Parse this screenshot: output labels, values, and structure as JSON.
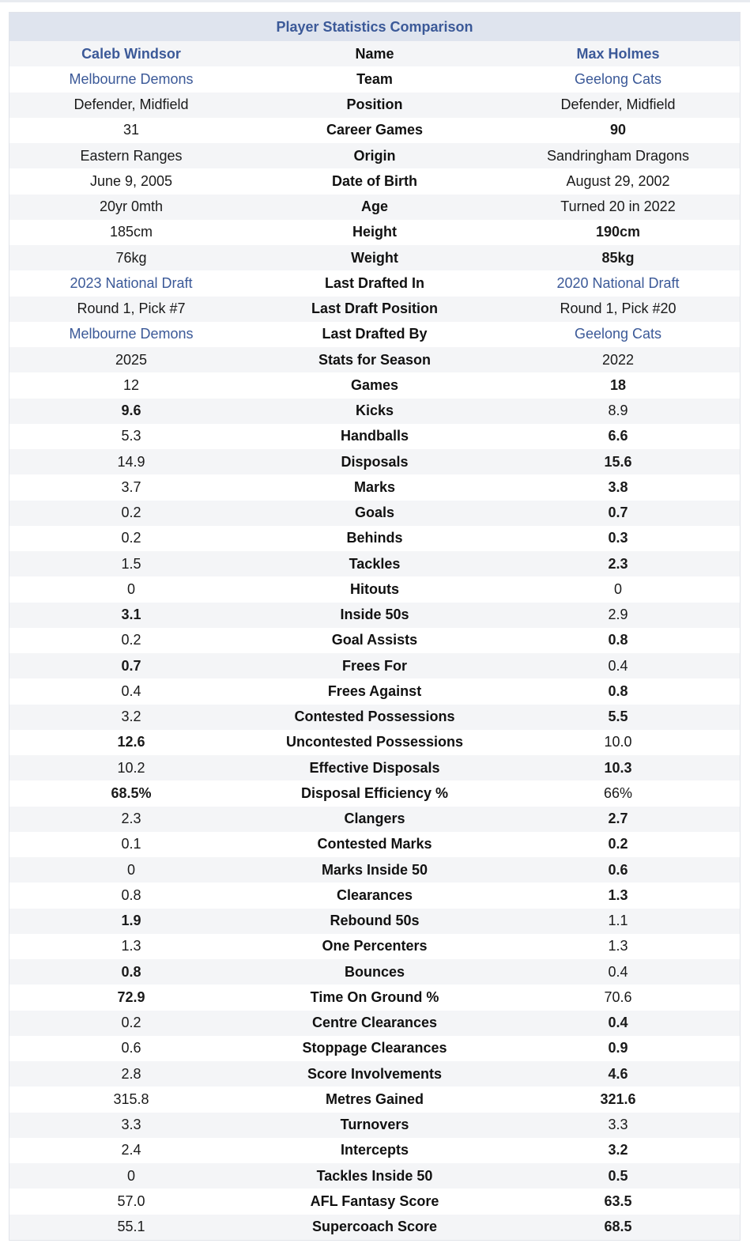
{
  "table": {
    "title": "Player Statistics Comparison",
    "rows": [
      {
        "left": "Caleb Windsor",
        "label": "Name",
        "right": "Max Holmes",
        "lstyle": "name",
        "rstyle": "name"
      },
      {
        "left": "Melbourne Demons",
        "label": "Team",
        "right": "Geelong Cats",
        "lstyle": "link",
        "rstyle": "link"
      },
      {
        "left": "Defender, Midfield",
        "label": "Position",
        "right": "Defender, Midfield",
        "lstyle": "",
        "rstyle": ""
      },
      {
        "left": "31",
        "label": "Career Games",
        "right": "90",
        "lstyle": "",
        "rstyle": "b"
      },
      {
        "left": "Eastern Ranges",
        "label": "Origin",
        "right": "Sandringham Dragons",
        "lstyle": "",
        "rstyle": ""
      },
      {
        "left": "June 9, 2005",
        "label": "Date of Birth",
        "right": "August 29, 2002",
        "lstyle": "",
        "rstyle": ""
      },
      {
        "left": "20yr 0mth",
        "label": "Age",
        "right": "Turned 20 in 2022",
        "lstyle": "",
        "rstyle": ""
      },
      {
        "left": "185cm",
        "label": "Height",
        "right": "190cm",
        "lstyle": "",
        "rstyle": "b"
      },
      {
        "left": "76kg",
        "label": "Weight",
        "right": "85kg",
        "lstyle": "",
        "rstyle": "b"
      },
      {
        "left": "2023 National Draft",
        "label": "Last Drafted In",
        "right": "2020 National Draft",
        "lstyle": "link",
        "rstyle": "link"
      },
      {
        "left": "Round 1, Pick #7",
        "label": "Last Draft Position",
        "right": "Round 1, Pick #20",
        "lstyle": "",
        "rstyle": ""
      },
      {
        "left": "Melbourne Demons",
        "label": "Last Drafted By",
        "right": "Geelong Cats",
        "lstyle": "link",
        "rstyle": "link"
      },
      {
        "left": "2025",
        "label": "Stats for Season",
        "right": "2022",
        "lstyle": "",
        "rstyle": ""
      },
      {
        "left": "12",
        "label": "Games",
        "right": "18",
        "lstyle": "",
        "rstyle": "b"
      },
      {
        "left": "9.6",
        "label": "Kicks",
        "right": "8.9",
        "lstyle": "b",
        "rstyle": ""
      },
      {
        "left": "5.3",
        "label": "Handballs",
        "right": "6.6",
        "lstyle": "",
        "rstyle": "b"
      },
      {
        "left": "14.9",
        "label": "Disposals",
        "right": "15.6",
        "lstyle": "",
        "rstyle": "b"
      },
      {
        "left": "3.7",
        "label": "Marks",
        "right": "3.8",
        "lstyle": "",
        "rstyle": "b"
      },
      {
        "left": "0.2",
        "label": "Goals",
        "right": "0.7",
        "lstyle": "",
        "rstyle": "b"
      },
      {
        "left": "0.2",
        "label": "Behinds",
        "right": "0.3",
        "lstyle": "",
        "rstyle": "b"
      },
      {
        "left": "1.5",
        "label": "Tackles",
        "right": "2.3",
        "lstyle": "",
        "rstyle": "b"
      },
      {
        "left": "0",
        "label": "Hitouts",
        "right": "0",
        "lstyle": "",
        "rstyle": ""
      },
      {
        "left": "3.1",
        "label": "Inside 50s",
        "right": "2.9",
        "lstyle": "b",
        "rstyle": ""
      },
      {
        "left": "0.2",
        "label": "Goal Assists",
        "right": "0.8",
        "lstyle": "",
        "rstyle": "b"
      },
      {
        "left": "0.7",
        "label": "Frees For",
        "right": "0.4",
        "lstyle": "b",
        "rstyle": ""
      },
      {
        "left": "0.4",
        "label": "Frees Against",
        "right": "0.8",
        "lstyle": "",
        "rstyle": "b"
      },
      {
        "left": "3.2",
        "label": "Contested Possessions",
        "right": "5.5",
        "lstyle": "",
        "rstyle": "b"
      },
      {
        "left": "12.6",
        "label": "Uncontested Possessions",
        "right": "10.0",
        "lstyle": "b",
        "rstyle": ""
      },
      {
        "left": "10.2",
        "label": "Effective Disposals",
        "right": "10.3",
        "lstyle": "",
        "rstyle": "b"
      },
      {
        "left": "68.5%",
        "label": "Disposal Efficiency %",
        "right": "66%",
        "lstyle": "b",
        "rstyle": ""
      },
      {
        "left": "2.3",
        "label": "Clangers",
        "right": "2.7",
        "lstyle": "",
        "rstyle": "b"
      },
      {
        "left": "0.1",
        "label": "Contested Marks",
        "right": "0.2",
        "lstyle": "",
        "rstyle": "b"
      },
      {
        "left": "0",
        "label": "Marks Inside 50",
        "right": "0.6",
        "lstyle": "",
        "rstyle": "b"
      },
      {
        "left": "0.8",
        "label": "Clearances",
        "right": "1.3",
        "lstyle": "",
        "rstyle": "b"
      },
      {
        "left": "1.9",
        "label": "Rebound 50s",
        "right": "1.1",
        "lstyle": "b",
        "rstyle": ""
      },
      {
        "left": "1.3",
        "label": "One Percenters",
        "right": "1.3",
        "lstyle": "",
        "rstyle": ""
      },
      {
        "left": "0.8",
        "label": "Bounces",
        "right": "0.4",
        "lstyle": "b",
        "rstyle": ""
      },
      {
        "left": "72.9",
        "label": "Time On Ground %",
        "right": "70.6",
        "lstyle": "b",
        "rstyle": ""
      },
      {
        "left": "0.2",
        "label": "Centre Clearances",
        "right": "0.4",
        "lstyle": "",
        "rstyle": "b"
      },
      {
        "left": "0.6",
        "label": "Stoppage Clearances",
        "right": "0.9",
        "lstyle": "",
        "rstyle": "b"
      },
      {
        "left": "2.8",
        "label": "Score Involvements",
        "right": "4.6",
        "lstyle": "",
        "rstyle": "b"
      },
      {
        "left": "315.8",
        "label": "Metres Gained",
        "right": "321.6",
        "lstyle": "",
        "rstyle": "b"
      },
      {
        "left": "3.3",
        "label": "Turnovers",
        "right": "3.3",
        "lstyle": "",
        "rstyle": ""
      },
      {
        "left": "2.4",
        "label": "Intercepts",
        "right": "3.2",
        "lstyle": "",
        "rstyle": "b"
      },
      {
        "left": "0",
        "label": "Tackles Inside 50",
        "right": "0.5",
        "lstyle": "",
        "rstyle": "b"
      },
      {
        "left": "57.0",
        "label": "AFL Fantasy Score",
        "right": "63.5",
        "lstyle": "",
        "rstyle": "b"
      },
      {
        "left": "55.1",
        "label": "Supercoach Score",
        "right": "68.5",
        "lstyle": "",
        "rstyle": "b"
      }
    ]
  }
}
